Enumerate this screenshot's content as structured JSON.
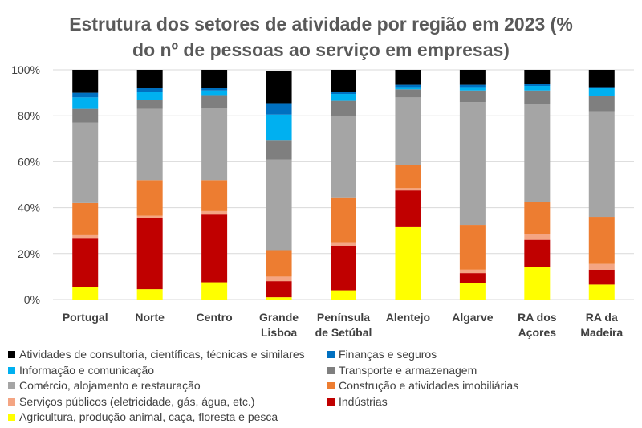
{
  "chart_data": {
    "type": "bar",
    "stacked": true,
    "title_lines": [
      "Estrutura dos setores de atividade por região em 2023 (%",
      "do nº de pessoas ao serviço em empresas)"
    ],
    "xlabel": "",
    "ylabel": "",
    "ylim": [
      0,
      100
    ],
    "yticks": [
      "0%",
      "20%",
      "40%",
      "60%",
      "80%",
      "100%"
    ],
    "grid": true,
    "legend_position": "bottom",
    "categories": [
      [
        "Portugal"
      ],
      [
        "Norte"
      ],
      [
        "Centro"
      ],
      [
        "Grande",
        "Lisboa"
      ],
      [
        "Península",
        "de Setúbal"
      ],
      [
        "Alentejo"
      ],
      [
        "Algarve"
      ],
      [
        "RA dos",
        "Açores"
      ],
      [
        "RA da",
        "Madeira"
      ]
    ],
    "series": [
      {
        "name": "Agricultura, produção animal, caça, floresta e pesca",
        "color": "#ffff00",
        "values": [
          5.5,
          4.5,
          7.5,
          1,
          4,
          31.5,
          7,
          14,
          6.5
        ]
      },
      {
        "name": "Indústrias",
        "color": "#c00000",
        "values": [
          21,
          31,
          29.5,
          7,
          19.5,
          16,
          4.5,
          12,
          6.5
        ]
      },
      {
        "name": "Serviços públicos (eletricidade, gás, água, etc.)",
        "color": "#f4a583",
        "values": [
          1.5,
          1,
          1.5,
          2,
          1.5,
          1,
          1.5,
          2.5,
          2.5
        ]
      },
      {
        "name": "Construção e atividades imobiliárias",
        "color": "#ed7d31",
        "values": [
          14,
          15.5,
          13.5,
          11.5,
          19.5,
          10,
          19.5,
          14,
          20.5
        ]
      },
      {
        "name": "Comércio, alojamento e restauração",
        "color": "#a5a5a5",
        "values": [
          35,
          31,
          31.5,
          39.5,
          35.5,
          29.5,
          53.5,
          42.5,
          46
        ]
      },
      {
        "name": "Transporte e armazenagem",
        "color": "#7f7f7f",
        "values": [
          6,
          4,
          5.5,
          8.5,
          6.5,
          3.5,
          5,
          6,
          6.5
        ]
      },
      {
        "name": "Informação e comunicação",
        "color": "#00b0f0",
        "values": [
          5,
          3.5,
          2,
          11,
          3,
          1,
          1.5,
          2,
          3.5
        ]
      },
      {
        "name": "Finanças e seguros",
        "color": "#0070c0",
        "values": [
          2,
          1.5,
          1,
          5,
          1,
          1,
          1,
          1,
          0.5
        ]
      },
      {
        "name": "Atividades de consultoria, científicas, técnicas e similares",
        "color": "#000000",
        "values": [
          10,
          8,
          8,
          14,
          9.5,
          6.5,
          6.5,
          6,
          7.5
        ]
      }
    ],
    "legend_order": [
      "Atividades de consultoria, científicas, técnicas e similares",
      "Finanças e seguros",
      "Informação e comunicação",
      "Transporte e armazenagem",
      "Comércio, alojamento e restauração",
      "Construção e atividades imobiliárias",
      "Serviços públicos (eletricidade, gás, água, etc.)",
      "Indústrias",
      "Agricultura, produção animal, caça, floresta e pesca"
    ]
  }
}
